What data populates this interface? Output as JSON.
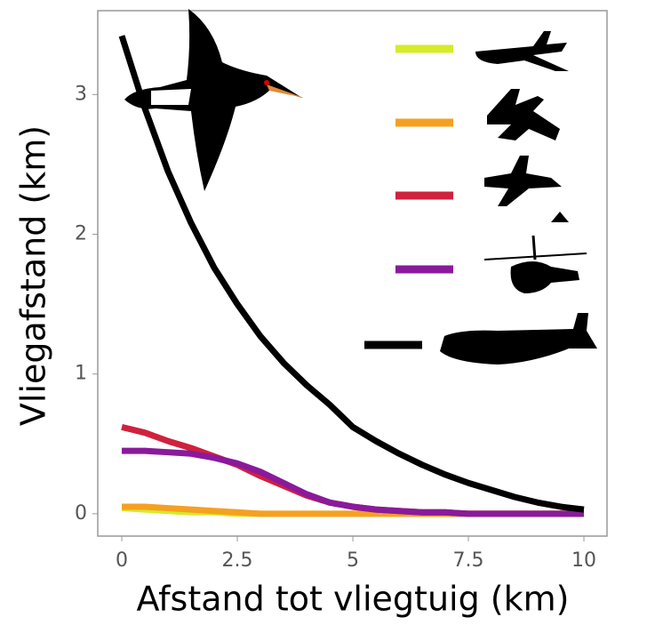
{
  "chart_data": {
    "type": "line",
    "xlabel": "Afstand tot vliegtuig (km)",
    "ylabel": "Vliegafstand (km)",
    "x": [
      0,
      0.5,
      1,
      1.5,
      2,
      2.5,
      3,
      3.5,
      4,
      4.5,
      5,
      5.5,
      6,
      6.5,
      7,
      7.5,
      8,
      8.5,
      9,
      9.5,
      10
    ],
    "series": [
      {
        "color": "#d4ec2a",
        "values": [
          0.04,
          0.03,
          0.02,
          0.01,
          0.01,
          0,
          0,
          0,
          0,
          0,
          0,
          0,
          0,
          0,
          0,
          0,
          0,
          0,
          0,
          0,
          0
        ]
      },
      {
        "color": "#f5a020",
        "values": [
          0.05,
          0.05,
          0.04,
          0.03,
          0.02,
          0.01,
          0,
          0,
          0,
          0,
          0,
          0,
          0,
          0,
          0,
          0,
          0,
          0,
          0,
          0,
          0
        ]
      },
      {
        "color": "#d0213d",
        "values": [
          0.62,
          0.58,
          0.52,
          0.47,
          0.41,
          0.35,
          0.27,
          0.2,
          0.13,
          0.08,
          0.05,
          0.03,
          0.02,
          0.01,
          0.01,
          0,
          0,
          0,
          0,
          0,
          0
        ]
      },
      {
        "color": "#8a1a9b",
        "values": [
          0.45,
          0.45,
          0.44,
          0.43,
          0.4,
          0.36,
          0.3,
          0.22,
          0.14,
          0.08,
          0.05,
          0.03,
          0.02,
          0.01,
          0.01,
          0,
          0,
          0,
          0,
          0,
          0
        ]
      },
      {
        "color": "#000000",
        "values": [
          3.42,
          2.9,
          2.45,
          2.08,
          1.76,
          1.5,
          1.27,
          1.08,
          0.92,
          0.78,
          0.62,
          0.52,
          0.43,
          0.35,
          0.28,
          0.22,
          0.17,
          0.12,
          0.08,
          0.05,
          0.03
        ]
      }
    ],
    "xlim": [
      -0.52,
      10.5
    ],
    "ylim": [
      -0.16,
      3.6
    ],
    "xticks": [
      0,
      2.5,
      5,
      7.5,
      10
    ],
    "yticks": [
      0,
      1,
      2,
      3
    ]
  }
}
